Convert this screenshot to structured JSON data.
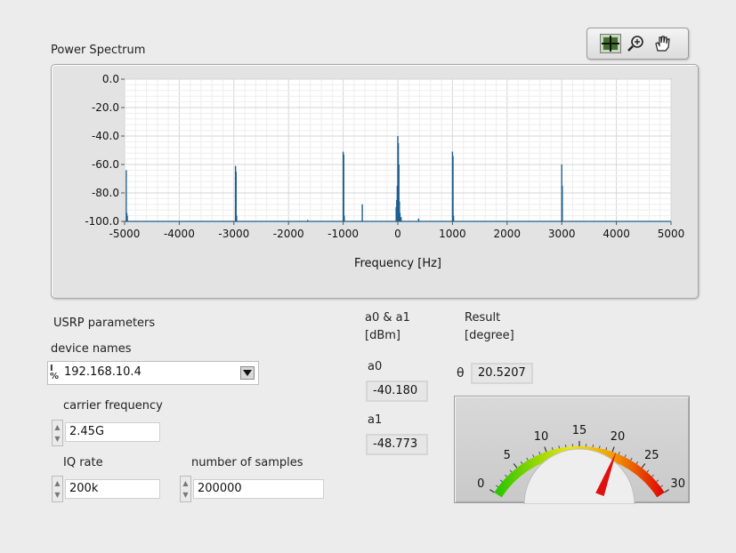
{
  "graph": {
    "title": "Power Spectrum",
    "toolbar": {
      "tools": [
        "crosshair-icon",
        "zoom-icon",
        "pan-hand-icon"
      ]
    }
  },
  "chart_data": {
    "type": "line",
    "title": "Power Spectrum",
    "xlabel": "Frequency [Hz]",
    "ylabel": "",
    "xlim": [
      -5000,
      5000
    ],
    "ylim": [
      -100,
      0
    ],
    "xticks": [
      "-5000",
      "-4000",
      "-3000",
      "-2000",
      "-1000",
      "0",
      "1000",
      "2000",
      "3000",
      "4000",
      "5000"
    ],
    "yticks": [
      "0.0",
      "-20.0",
      "-40.0",
      "-60.0",
      "-80.0",
      "-100.0"
    ],
    "grid": true,
    "series": [
      {
        "color": "#1f5f8f",
        "x": [
          -4970,
          -4960,
          -4950,
          -2970,
          -2960,
          -2950,
          -1650,
          -1000,
          -990,
          -980,
          -650,
          -30,
          -20,
          -10,
          0,
          10,
          20,
          30,
          40,
          60,
          380,
          1000,
          1010,
          1020,
          3000,
          3010
        ],
        "y": [
          -64,
          -94,
          -96,
          -61,
          -65,
          -96,
          -99,
          -51,
          -53,
          -96,
          -88,
          -90,
          -85,
          -75,
          -40,
          -45,
          -60,
          -86,
          -94,
          -97,
          -98,
          -51,
          -54,
          -96,
          -60,
          -75
        ]
      }
    ]
  },
  "usrp": {
    "section_label": "USRP parameters",
    "device_names_label": "device names",
    "device_name_value": "192.168.10.4",
    "io_icon_top": "I",
    "io_icon_bottom": "%",
    "carrier_label": "carrier frequency",
    "carrier_value": "2.45G",
    "iq_rate_label": "IQ rate",
    "iq_rate_value": "200k",
    "samples_label": "number of samples",
    "samples_value": "200000"
  },
  "amplitudes": {
    "header_line1": "a0 & a1",
    "header_line2": "[dBm]",
    "a0_label": "a0",
    "a0_value": "-40.180",
    "a1_label": "a1",
    "a1_value": "-48.773"
  },
  "result": {
    "header_line1": "Result",
    "header_line2": "[degree]",
    "theta_label": "θ",
    "theta_value": "20.5207"
  },
  "meter": {
    "scale_labels": [
      "0",
      "5",
      "10",
      "15",
      "20",
      "25",
      "30"
    ],
    "min": 0,
    "max": 30,
    "value": 20.5207,
    "colors": {
      "low": "#22c400",
      "mid": "#f2e800",
      "high": "#e00000"
    }
  }
}
